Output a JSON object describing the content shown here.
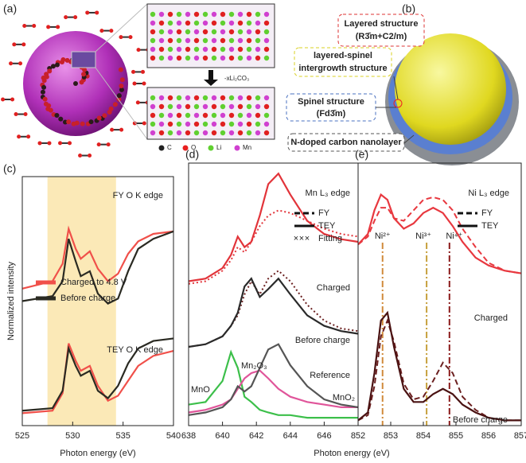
{
  "figure": {
    "panel_a": {
      "label": "(a)",
      "reaction": "-xLi₂CO₃",
      "legend": [
        "C",
        "O",
        "Li",
        "Mn"
      ]
    },
    "panel_b": {
      "label": "(b)",
      "layered": [
        "Layered structure",
        "(R3̄m+C2/m)"
      ],
      "intergrowth": [
        "layered-spinel",
        "intergrowth structure"
      ],
      "spinel": [
        "Spinel structure",
        "(Fd3̄m)"
      ],
      "carbon": "N-doped carbon nanolayer"
    }
  },
  "chart_data": [
    {
      "type": "line",
      "panel": "(c)",
      "xlabel": "Photon energy (eV)",
      "ylabel": "Normalized intensity",
      "xlim": [
        525,
        540
      ],
      "xticks": [
        525,
        530,
        535,
        540
      ],
      "ylim": [
        0,
        10
      ],
      "highlight": [
        527.5,
        534.3
      ],
      "highlight_color": "#fbe9b7",
      "annotations": [
        "FY O K edge",
        "TEY O K edge"
      ],
      "x": [
        525,
        528,
        529,
        529.6,
        530.3,
        530.8,
        531.7,
        532.5,
        533.5,
        534.5,
        535.5,
        536.5,
        538,
        540
      ],
      "series": [
        {
          "name": "Charged to 4.8 V",
          "color": "#f0504a",
          "values": [
            5.5,
            5.8,
            6.5,
            7.9,
            7.1,
            6.7,
            7.0,
            6.3,
            5.8,
            6.1,
            6.9,
            7.4,
            7.7,
            7.8
          ]
        },
        {
          "name": "Before charge",
          "color": "#2a2a22",
          "values": [
            5.0,
            5.2,
            5.8,
            7.5,
            6.6,
            6.0,
            6.2,
            5.3,
            4.9,
            5.1,
            6.2,
            7.1,
            7.5,
            7.8
          ]
        },
        {
          "color": "#f0504a",
          "values": [
            0.5,
            0.6,
            1.3,
            3.3,
            2.6,
            2.2,
            2.4,
            1.6,
            1.0,
            1.2,
            1.8,
            2.4,
            2.8,
            3.0
          ]
        },
        {
          "color": "#2a2a22",
          "values": [
            0.6,
            0.7,
            1.4,
            3.1,
            2.4,
            2.0,
            2.2,
            1.4,
            1.1,
            1.6,
            2.5,
            3.1,
            3.4,
            3.5
          ]
        }
      ]
    },
    {
      "type": "line",
      "panel": "(d)",
      "xlabel": "Photon energy (eV)",
      "xlim": [
        638,
        648
      ],
      "xticks": [
        638,
        640,
        642,
        644,
        646,
        648
      ],
      "ylim": [
        0,
        10
      ],
      "annotations": [
        "Mn L₃ edge",
        "Charged",
        "Before charge",
        "Reference",
        "MnO",
        "Mn₂O₃",
        "MnO₂"
      ],
      "legend": [
        {
          "label": "FY",
          "dash": "7 4"
        },
        {
          "label": "TEY"
        },
        {
          "label": "Fitting",
          "marker": "cross"
        }
      ],
      "x": [
        638,
        639,
        640,
        640.5,
        640.9,
        641.3,
        641.7,
        642.2,
        642.7,
        643.3,
        644,
        645,
        646,
        647,
        648
      ],
      "series": [
        {
          "color": "#e2343a",
          "dash": "2 3",
          "values": [
            5.4,
            5.5,
            5.9,
            6.3,
            6.8,
            6.6,
            7.0,
            7.6,
            8.0,
            8.2,
            8.1,
            7.8,
            7.5,
            7.3,
            7.2
          ]
        },
        {
          "color": "#e2343a",
          "values": [
            5.5,
            5.6,
            6.0,
            6.5,
            7.2,
            6.8,
            7.0,
            8.0,
            9.2,
            9.6,
            8.8,
            7.8,
            7.3,
            7.1,
            7.0
          ]
        },
        {
          "color": "#6b1f1f",
          "dash": "2 3",
          "values": [
            3.0,
            3.1,
            3.4,
            3.8,
            4.2,
            5.0,
            5.5,
            5.0,
            5.6,
            5.9,
            5.5,
            4.6,
            4.0,
            3.7,
            3.6
          ]
        },
        {
          "color": "#2a2a2a",
          "values": [
            3.0,
            3.1,
            3.4,
            3.8,
            4.3,
            5.3,
            5.6,
            4.9,
            5.2,
            5.6,
            5.0,
            4.2,
            3.8,
            3.6,
            3.5
          ]
        },
        {
          "color": "#3cbf4a",
          "values": [
            0.8,
            0.9,
            1.7,
            2.8,
            2.2,
            1.1,
            0.9,
            0.6,
            0.5,
            0.4,
            0.4,
            0.3,
            0.3,
            0.3,
            0.3
          ]
        },
        {
          "color": "#e0559a",
          "values": [
            0.5,
            0.6,
            0.8,
            1.0,
            1.4,
            1.8,
            2.0,
            2.1,
            1.8,
            1.4,
            1.1,
            0.9,
            0.8,
            0.7,
            0.7
          ]
        },
        {
          "color": "#555555",
          "values": [
            0.4,
            0.5,
            0.7,
            1.0,
            1.5,
            1.3,
            1.5,
            2.2,
            2.9,
            3.1,
            2.3,
            1.5,
            1.0,
            0.8,
            0.7
          ]
        }
      ]
    },
    {
      "type": "line",
      "panel": "(e)",
      "xlim": [
        852,
        857
      ],
      "xticks": [
        852,
        853,
        854,
        855,
        856,
        857
      ],
      "ylim": [
        0,
        10
      ],
      "annotations": [
        "Ni L₃ edge",
        "Charged",
        "Before charge"
      ],
      "legend": [
        {
          "label": "FY",
          "dash": "7 4"
        },
        {
          "label": "TEY"
        }
      ],
      "markers": [
        {
          "label": "Ni²⁺",
          "x": 852.75,
          "color": "#d08a3a"
        },
        {
          "label": "Ni³⁺",
          "x": 854.1,
          "color": "#c6a03c"
        },
        {
          "label": "Ni⁴⁺",
          "x": 854.8,
          "color": "#8b1a1a"
        }
      ],
      "x": [
        852,
        852.3,
        852.5,
        852.7,
        852.9,
        853.1,
        853.4,
        853.7,
        854,
        854.3,
        854.6,
        854.9,
        855.2,
        855.6,
        856,
        856.5,
        857
      ],
      "series": [
        {
          "color": "#e8383f",
          "dash": "7 4",
          "values": [
            6.9,
            7.2,
            7.8,
            8.3,
            8.3,
            7.9,
            7.8,
            8.2,
            8.6,
            8.7,
            8.6,
            8.2,
            7.5,
            6.8,
            6.2,
            5.9,
            5.8
          ]
        },
        {
          "color": "#e8383f",
          "values": [
            6.9,
            7.3,
            8.2,
            8.8,
            8.6,
            7.9,
            7.5,
            7.7,
            8.1,
            8.3,
            8.1,
            7.6,
            7.0,
            6.4,
            6.1,
            5.9,
            5.8
          ]
        },
        {
          "color": "#6b1f1f",
          "dash": "7 4",
          "values": [
            0.2,
            0.4,
            1.5,
            3.4,
            4.0,
            3.2,
            1.6,
            1.0,
            1.1,
            1.7,
            2.4,
            2.0,
            1.1,
            0.6,
            0.3,
            0.2,
            0.2
          ]
        },
        {
          "color": "#4a1212",
          "values": [
            0.2,
            0.5,
            2.0,
            4.0,
            4.3,
            3.0,
            1.4,
            0.9,
            0.9,
            1.2,
            1.4,
            1.2,
            0.8,
            0.5,
            0.3,
            0.2,
            0.2
          ]
        }
      ]
    }
  ]
}
